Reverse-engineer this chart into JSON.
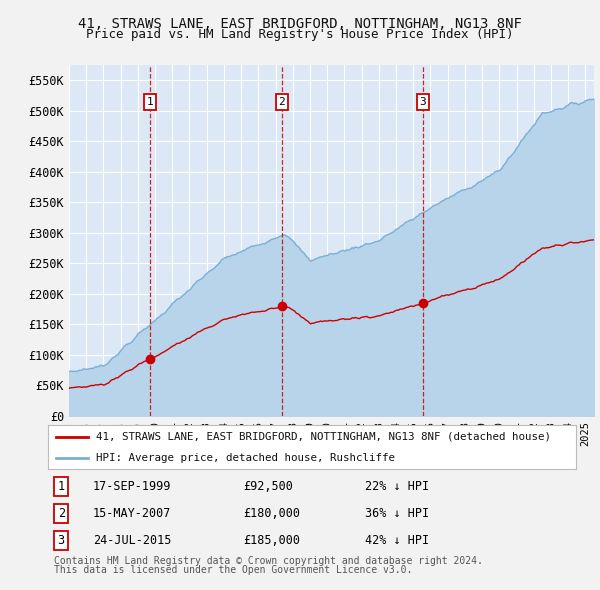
{
  "title": "41, STRAWS LANE, EAST BRIDGFORD, NOTTINGHAM, NG13 8NF",
  "subtitle": "Price paid vs. HM Land Registry's House Price Index (HPI)",
  "ylim": [
    0,
    575000
  ],
  "yticks": [
    0,
    50000,
    100000,
    150000,
    200000,
    250000,
    300000,
    350000,
    400000,
    450000,
    500000,
    550000
  ],
  "ytick_labels": [
    "£0",
    "£50K",
    "£100K",
    "£150K",
    "£200K",
    "£250K",
    "£300K",
    "£350K",
    "£400K",
    "£450K",
    "£500K",
    "£550K"
  ],
  "fig_bg_color": "#f2f2f2",
  "plot_bg_color": "#dce8f5",
  "grid_color": "#ffffff",
  "red_line_color": "#cc0000",
  "blue_line_color": "#7aafd4",
  "blue_fill_color": "#b8d4ea",
  "sales": [
    {
      "label": "1",
      "year": 1999.71,
      "price": 92500,
      "date": "17-SEP-1999",
      "hpi_pct": "22% ↓ HPI"
    },
    {
      "label": "2",
      "year": 2007.37,
      "price": 180000,
      "date": "15-MAY-2007",
      "hpi_pct": "36% ↓ HPI"
    },
    {
      "label": "3",
      "year": 2015.55,
      "price": 185000,
      "date": "24-JUL-2015",
      "hpi_pct": "42% ↓ HPI"
    }
  ],
  "legend_red_label": "41, STRAWS LANE, EAST BRIDGFORD, NOTTINGHAM, NG13 8NF (detached house)",
  "legend_blue_label": "HPI: Average price, detached house, Rushcliffe",
  "footnote_line1": "Contains HM Land Registry data © Crown copyright and database right 2024.",
  "footnote_line2": "This data is licensed under the Open Government Licence v3.0.",
  "xlim_start": 1995.0,
  "xlim_end": 2025.5
}
